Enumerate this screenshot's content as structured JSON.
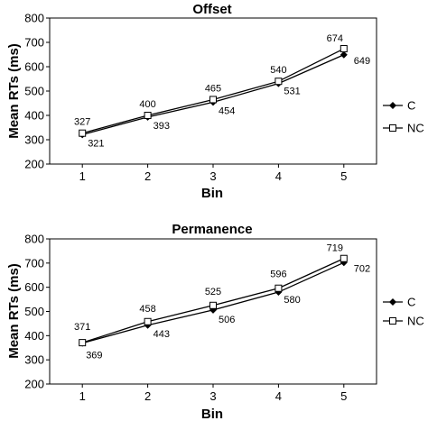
{
  "chart_data": [
    {
      "type": "line",
      "title": "Offset",
      "xlabel": "Bin",
      "ylabel": "Mean RTs (ms)",
      "x": [
        1,
        2,
        3,
        4,
        5
      ],
      "ylim": [
        200,
        800
      ],
      "yticks": [
        200,
        300,
        400,
        500,
        600,
        700,
        800
      ],
      "grid": false,
      "legend_position": "right",
      "series": [
        {
          "name": "C",
          "marker": "filled-diamond",
          "values": [
            321,
            393,
            454,
            531,
            649
          ],
          "color": "#000000"
        },
        {
          "name": "NC",
          "marker": "open-square",
          "values": [
            327,
            400,
            465,
            540,
            674
          ],
          "color": "#000000"
        }
      ]
    },
    {
      "type": "line",
      "title": "Permanence",
      "xlabel": "Bin",
      "ylabel": "Mean RTs (ms)",
      "x": [
        1,
        2,
        3,
        4,
        5
      ],
      "ylim": [
        200,
        800
      ],
      "yticks": [
        200,
        300,
        400,
        500,
        600,
        700,
        800
      ],
      "grid": false,
      "legend_position": "right",
      "series": [
        {
          "name": "C",
          "marker": "filled-diamond",
          "values": [
            369,
            443,
            506,
            580,
            702
          ],
          "color": "#000000"
        },
        {
          "name": "NC",
          "marker": "open-square",
          "values": [
            371,
            458,
            525,
            596,
            719
          ],
          "color": "#000000"
        }
      ]
    }
  ]
}
